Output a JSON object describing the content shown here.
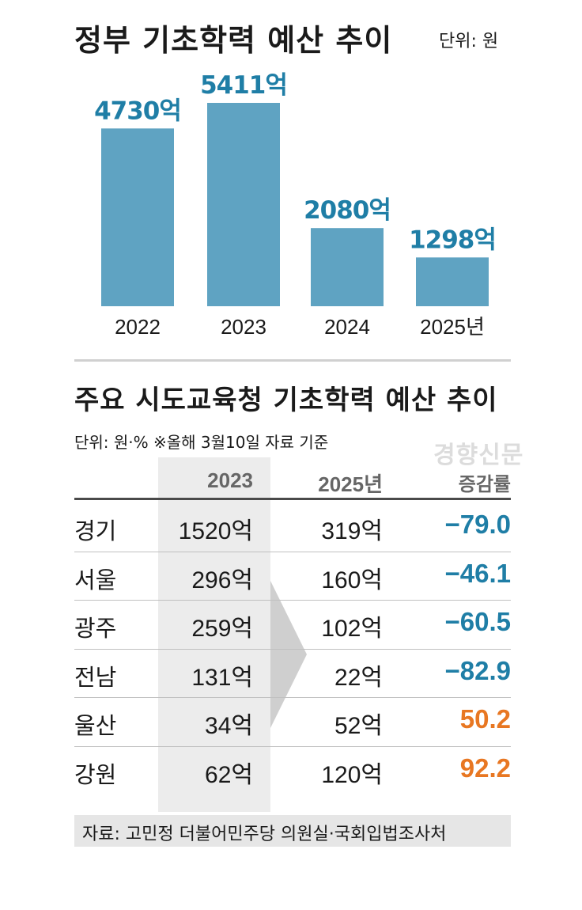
{
  "header": {
    "title": "정부 기초학력 예산 추이",
    "unit": "단위: 원"
  },
  "chart_data": [
    {
      "type": "bar",
      "title": "정부 기초학력 예산 추이",
      "unit": "단위: 원",
      "categories": [
        "2022",
        "2023",
        "2024",
        "2025년"
      ],
      "values": [
        4730,
        5411,
        2080,
        1298
      ],
      "value_labels": [
        "4730억",
        "5411억",
        "2080억",
        "1298억"
      ],
      "value_unit": "억원",
      "ylim": [
        0,
        5800
      ],
      "grid": false,
      "color": "#5fa3c2",
      "label_color": "#1f7ea6"
    },
    {
      "type": "table",
      "title": "주요 시도교육청 기초학력 예산 추이",
      "unit": "단위: 원·% ※올해 3월10일 자료 기준",
      "columns": [
        "",
        "2023",
        "2025년",
        "증감률"
      ],
      "rows": [
        {
          "region": "경기",
          "y2023": "1520억",
          "y2025": "319억",
          "rate": "−79.0",
          "sign": "negative"
        },
        {
          "region": "서울",
          "y2023": "296억",
          "y2025": "160억",
          "rate": "−46.1",
          "sign": "negative"
        },
        {
          "region": "광주",
          "y2023": "259억",
          "y2025": "102억",
          "rate": "−60.5",
          "sign": "negative"
        },
        {
          "region": "전남",
          "y2023": "131억",
          "y2025": "22억",
          "rate": "−82.9",
          "sign": "negative"
        },
        {
          "region": "울산",
          "y2023": "34억",
          "y2025": "52억",
          "rate": "50.2",
          "sign": "positive"
        },
        {
          "region": "강원",
          "y2023": "62억",
          "y2025": "120억",
          "rate": "92.2",
          "sign": "positive"
        }
      ],
      "colors": {
        "negative": "#1f7ea6",
        "positive": "#e87722"
      }
    }
  ],
  "watermark": "경향신문",
  "source": "자료: 고민정 더불어민주당 의원실·국회입법조사처"
}
